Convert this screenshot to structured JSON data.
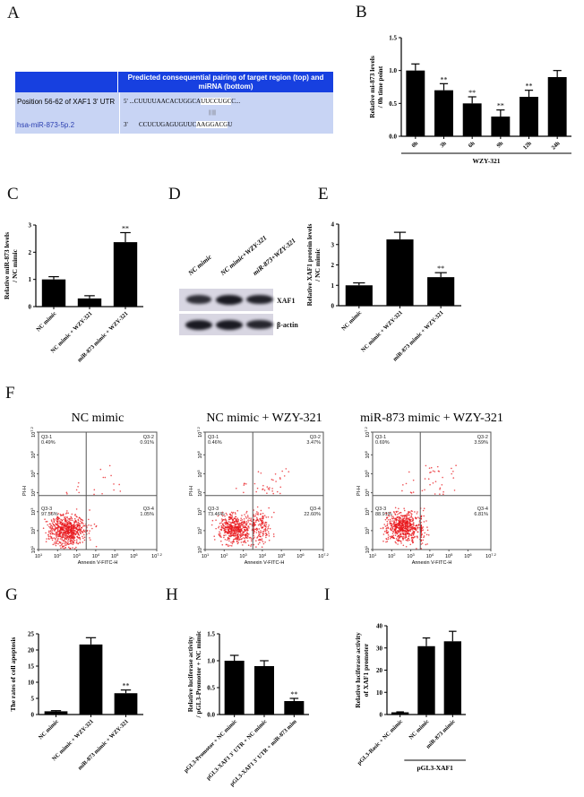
{
  "panel_labels": {
    "A": "A",
    "B": "B",
    "C": "C",
    "D": "D",
    "E": "E",
    "F": "F",
    "G": "G",
    "H": "H",
    "I": "I"
  },
  "panelA": {
    "header": "Predicted consequential pairing of target region (top) and miRNA (bottom)",
    "rows": [
      {
        "name": "Position 56-62 of XAF1 3' UTR",
        "end": "5'",
        "prefix": " ...CUUUUAACACUGGCA",
        "seed": "UUCCUGC",
        "suffix": "C..."
      },
      {
        "name": "hsa-miR-873-5p.2",
        "end": "3'",
        "prefix": "       CCUCUGAGUGUUC",
        "seed": "AAGGACG",
        "suffix": "U"
      }
    ],
    "pairing": "|||||||",
    "colors": {
      "header": "#1740e0",
      "row": "#c8d4f4",
      "mirna_name": "#2b3fb0"
    }
  },
  "panelD": {
    "lanes": [
      "NC mimic",
      "NC mimic+WZY-321",
      "miR-873+WZY-321"
    ],
    "rows": [
      {
        "label": "XAF1",
        "intensity": [
          0.75,
          1.0,
          0.9
        ]
      },
      {
        "label": "β-actin",
        "intensity": [
          1.0,
          1.0,
          0.85
        ]
      }
    ]
  },
  "chart_data": [
    {
      "id": "B",
      "type": "bar",
      "categories": [
        "0h",
        "3h",
        "6h",
        "9h",
        "12h",
        "24h"
      ],
      "values": [
        1.0,
        0.7,
        0.5,
        0.3,
        0.6,
        0.9
      ],
      "errors": [
        0.1,
        0.1,
        0.1,
        0.1,
        0.1,
        0.1
      ],
      "significance": [
        "",
        "**",
        "**",
        "**",
        "**",
        ""
      ],
      "ylim": [
        0,
        1.5
      ],
      "yticks": [
        "0.0",
        "0.5",
        "1.0",
        "1.5"
      ],
      "ylabel": [
        "Relative mi-873 levels",
        "/ 0h time point"
      ],
      "group": {
        "label": "WZY-321",
        "from": 0,
        "to": 5
      }
    },
    {
      "id": "C",
      "type": "bar",
      "categories": [
        "NC mimic",
        "NC mimic + WZY-321",
        "miR-873 mimic + WZY-321"
      ],
      "values": [
        1.0,
        0.3,
        2.37
      ],
      "errors": [
        0.1,
        0.1,
        0.35
      ],
      "significance": [
        "",
        "",
        "**"
      ],
      "ylim": [
        0,
        3
      ],
      "yticks": [
        "0",
        "1",
        "2",
        "3"
      ],
      "ylabel": [
        "Relative miR-873 levels",
        "/ NC mimic"
      ]
    },
    {
      "id": "E",
      "type": "bar",
      "categories": [
        "NC mimic",
        "NC mimic + WZY-321",
        "miR-873 mimic + WZY-321"
      ],
      "values": [
        1.0,
        3.25,
        1.4
      ],
      "errors": [
        0.12,
        0.35,
        0.22
      ],
      "significance": [
        "",
        "",
        "**"
      ],
      "ylim": [
        0,
        4
      ],
      "yticks": [
        "0",
        "1",
        "2",
        "3",
        "4"
      ],
      "ylabel": [
        "Relative XAF1 protein levels",
        "/ NC mimic"
      ]
    },
    {
      "id": "F",
      "type": "scatter",
      "xlabel": "Annexin V-FITC-H",
      "ylabel": "PI-H",
      "axis_scale": "log",
      "tick_exponents": [
        "1",
        "2",
        "3",
        "4",
        "5",
        "6",
        "7.2"
      ],
      "gate_log": {
        "x": 3.5,
        "y": 3.85
      },
      "plots": [
        {
          "title": "NC mimic",
          "quadrants": [
            {
              "name": "Q3-1",
              "pct": "0.49%"
            },
            {
              "name": "Q3-2",
              "pct": "0.91%"
            },
            {
              "name": "Q3-3",
              "pct": "97.56%"
            },
            {
              "name": "Q3-4",
              "pct": "1.05%"
            }
          ]
        },
        {
          "title": "NC mimic + WZY-321",
          "quadrants": [
            {
              "name": "Q3-1",
              "pct": "0.46%"
            },
            {
              "name": "Q3-2",
              "pct": "3.47%"
            },
            {
              "name": "Q3-3",
              "pct": "73.46%"
            },
            {
              "name": "Q3-4",
              "pct": "22.60%"
            }
          ]
        },
        {
          "title": "miR-873 mimic + WZY-321",
          "quadrants": [
            {
              "name": "Q3-1",
              "pct": "0.69%"
            },
            {
              "name": "Q3-2",
              "pct": "3.59%"
            },
            {
              "name": "Q3-3",
              "pct": "88.91%"
            },
            {
              "name": "Q3-4",
              "pct": "6.81%"
            }
          ]
        }
      ],
      "dot_color": "#e8161b"
    },
    {
      "id": "G",
      "type": "bar",
      "categories": [
        "NC mimic",
        "NC mimic + WZY-321",
        "miR-873 mimic + WZY-321"
      ],
      "values": [
        1.0,
        21.7,
        6.6
      ],
      "errors": [
        0.2,
        2.1,
        1.0
      ],
      "significance": [
        "",
        "",
        "**"
      ],
      "ylim": [
        0,
        25
      ],
      "yticks": [
        "0",
        "5",
        "10",
        "15",
        "20",
        "25"
      ],
      "ylabel": [
        "The rates of cell apoptosis"
      ]
    },
    {
      "id": "H",
      "type": "bar",
      "categories": [
        "pGL3-Promotor + NC mimic",
        "pGL3-XAF1 3' UTR + NC mimic",
        "pGL3-XAF1 3' UTR + miR-873 mim"
      ],
      "values": [
        1.0,
        0.9,
        0.25
      ],
      "errors": [
        0.1,
        0.1,
        0.05
      ],
      "significance": [
        "",
        "",
        "**"
      ],
      "ylim": [
        0,
        1.5
      ],
      "yticks": [
        "0.0",
        "0.5",
        "1.0",
        "1.5"
      ],
      "ylabel": [
        "Relative luciferase activity",
        "/ pGL3-Promotor + NC mimic"
      ]
    },
    {
      "id": "I",
      "type": "bar",
      "categories": [
        "pGL3-Basic + NC mimic",
        "NC mimic",
        "miR-873 mimic"
      ],
      "values": [
        1.0,
        30.8,
        33.0
      ],
      "errors": [
        0.2,
        3.7,
        4.5
      ],
      "significance": [
        "",
        "",
        ""
      ],
      "ylim": [
        0,
        40
      ],
      "yticks": [
        "0",
        "10",
        "20",
        "30",
        "40"
      ],
      "ylabel": [
        "Relative luciferase activity",
        "of XAF1 promoter"
      ],
      "group": {
        "label": "pGL3-XAF1",
        "from": 1,
        "to": 2
      }
    }
  ]
}
